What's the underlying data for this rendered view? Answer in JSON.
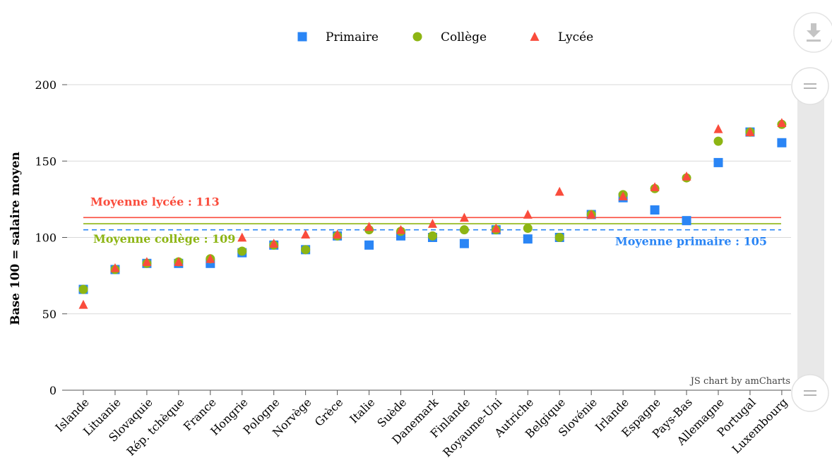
{
  "chart_data": {
    "type": "scatter",
    "ylabel": "Base 100 = salaire moyen",
    "ylim": [
      0,
      200
    ],
    "yticks": [
      0,
      50,
      100,
      150,
      200
    ],
    "grid": true,
    "legend_position": "top-center",
    "categories": [
      "Islande",
      "Lituanie",
      "Slovaquie",
      "Rép. tchèque",
      "France",
      "Hongrie",
      "Pologne",
      "Norvège",
      "Grèce",
      "Italie",
      "Suède",
      "Danemark",
      "Finlande",
      "Royaume-Uni",
      "Autriche",
      "Belgique",
      "Slovénie",
      "Irlande",
      "Espagne",
      "Pays-Bas",
      "Allemagne",
      "Portugal",
      "Luxembourg"
    ],
    "series": [
      {
        "name": "Primaire",
        "marker": "square",
        "color": "#2a85f5",
        "values": [
          66,
          79,
          83,
          83,
          83,
          90,
          95,
          92,
          101,
          95,
          101,
          100,
          96,
          105,
          99,
          100,
          115,
          126,
          118,
          111,
          149,
          169,
          162
        ]
      },
      {
        "name": "Collège",
        "marker": "circle",
        "color": "#8db513",
        "values": [
          66,
          79,
          83,
          84,
          86,
          91,
          95,
          92,
          101,
          105,
          104,
          101,
          105,
          105,
          106,
          100,
          115,
          128,
          132,
          139,
          163,
          169,
          174
        ]
      },
      {
        "name": "Lycée",
        "marker": "triangle",
        "color": "#fa4c3c",
        "values": [
          56,
          80,
          84,
          84,
          86,
          100,
          96,
          102,
          102,
          107,
          105,
          109,
          113,
          106,
          115,
          130,
          115,
          127,
          133,
          140,
          171,
          169,
          175
        ]
      }
    ],
    "reference_lines": [
      {
        "label": "Moyenne lycée : 113",
        "value": 113,
        "color": "#fa4c3c",
        "style": "solid"
      },
      {
        "label": "Moyenne collège : 109",
        "value": 109,
        "color": "#8db513",
        "style": "solid"
      },
      {
        "label": "Moyenne primaire : 105",
        "value": 105,
        "color": "#2a85f5",
        "style": "dashed"
      }
    ],
    "credit": "JS chart by amCharts"
  },
  "controls": {
    "download_icon": "download-icon",
    "scroll_handle_icon": "grip-lines-icon"
  }
}
